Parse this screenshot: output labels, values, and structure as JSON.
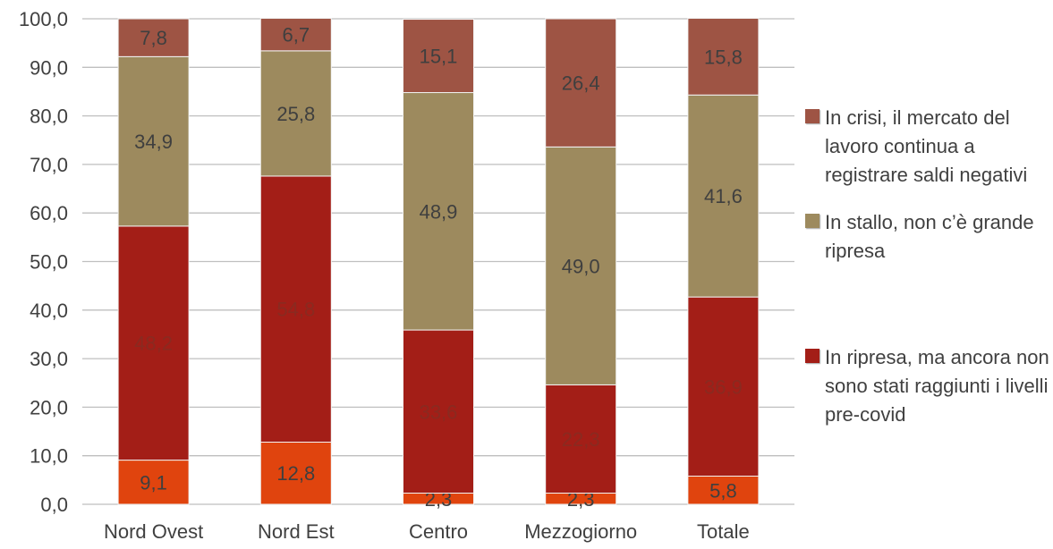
{
  "chart_data": {
    "type": "bar",
    "stacked": true,
    "percent": true,
    "categories": [
      "Nord Ovest",
      "Nord Est",
      "Centro",
      "Mezzogiorno",
      "Totale"
    ],
    "ylim": [
      0,
      100
    ],
    "yticks": [
      "0,0",
      "10,0",
      "20,0",
      "30,0",
      "40,0",
      "50,0",
      "60,0",
      "70,0",
      "80,0",
      "90,0",
      "100,0"
    ],
    "grid": true,
    "legend_position": "right",
    "series": [
      {
        "name": "",
        "color": "#E0440E",
        "label_color": "#3F3F3F",
        "values": [
          9.1,
          12.8,
          2.3,
          2.3,
          5.8
        ],
        "labels": [
          "9,1",
          "12,8",
          "2,3",
          "2,3",
          "5,8"
        ]
      },
      {
        "name": "In ripresa, ma ancora non sono stati raggiunti i livelli pre-covid",
        "color": "#A31E17",
        "label_color": "#8A2A20",
        "values": [
          48.2,
          54.8,
          33.6,
          22.3,
          36.9
        ],
        "labels": [
          "48,2",
          "54,8",
          "33,6",
          "22,3",
          "36,9"
        ]
      },
      {
        "name": "In stallo, non c’è grande ripresa",
        "color": "#9D8A5E",
        "label_color": "#3F3F3F",
        "values": [
          34.9,
          25.8,
          48.9,
          49.0,
          41.6
        ],
        "labels": [
          "34,9",
          "25,8",
          "48,9",
          "49,0",
          "41,6"
        ]
      },
      {
        "name": "In crisi, il mercato del lavoro continua a registrare saldi negativi",
        "color": "#9E5444",
        "label_color": "#3F3F3F",
        "values": [
          7.8,
          6.7,
          15.1,
          26.4,
          15.8
        ],
        "labels": [
          "7,8",
          "6,7",
          "15,1",
          "26,4",
          "15,8"
        ]
      }
    ]
  }
}
